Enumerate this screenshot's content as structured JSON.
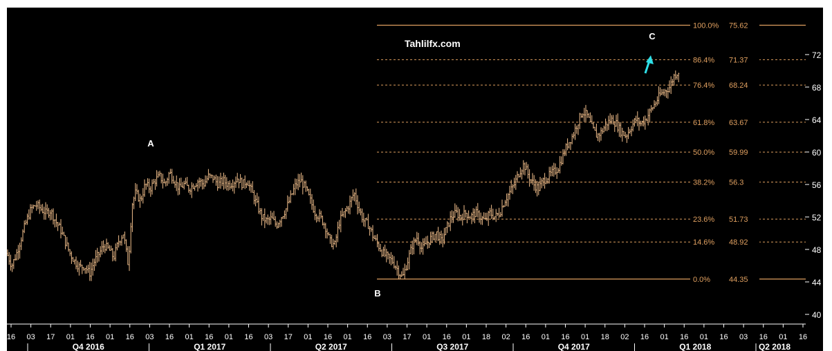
{
  "chart_data": {
    "type": "candlestick",
    "watermark": "Tahlilfx.com",
    "y_axis": {
      "ticks": [
        40,
        44,
        48,
        52,
        56,
        60,
        64,
        68,
        72
      ],
      "range": [
        39,
        77
      ]
    },
    "x_axis": {
      "day_ticks": [
        "16",
        "03",
        "17",
        "01",
        "16",
        "01",
        "16",
        "03",
        "16",
        "01",
        "16",
        "01",
        "16",
        "03",
        "17",
        "01",
        "16",
        "01",
        "16",
        "03",
        "17",
        "01",
        "16",
        "01",
        "18",
        "02",
        "16",
        "01",
        "16",
        "01",
        "18",
        "02",
        "16",
        "01",
        "16",
        "01",
        "16",
        "03",
        "16",
        "01",
        "16"
      ],
      "quarter_labels": [
        "Q4 2016",
        "Q1 2017",
        "Q2 2017",
        "Q3 2017",
        "Q4 2017",
        "Q1 2018",
        "Q2 2018"
      ]
    },
    "fibonacci_levels": [
      {
        "label": "100.0%",
        "value": "75.62",
        "level": 75.62
      },
      {
        "label": "86.4%",
        "value": "71.37",
        "level": 71.37
      },
      {
        "label": "76.4%",
        "value": "68.24",
        "level": 68.24
      },
      {
        "label": "61.8%",
        "value": "63.67",
        "level": 63.67
      },
      {
        "label": "50.0%",
        "value": "59.99",
        "level": 59.99
      },
      {
        "label": "38.2%",
        "value": "56.3",
        "level": 56.3
      },
      {
        "label": "23.6%",
        "value": "51.73",
        "level": 51.73
      },
      {
        "label": "14.6%",
        "value": "48.92",
        "level": 48.92
      },
      {
        "label": "0.0%",
        "value": "44.35",
        "level": 44.35
      }
    ],
    "wave_points": [
      {
        "label": "A",
        "price": 58.5
      },
      {
        "label": "B",
        "price": 44.35
      },
      {
        "label": "C",
        "price": 75.62
      }
    ],
    "price_path": [
      [
        0,
        47.5
      ],
      [
        0.04,
        46.0
      ],
      [
        0.08,
        47.5
      ],
      [
        0.12,
        49.5
      ],
      [
        0.16,
        51.5
      ],
      [
        0.2,
        53.0
      ],
      [
        0.24,
        53.5
      ],
      [
        0.28,
        53.0
      ],
      [
        0.32,
        52.5
      ],
      [
        0.36,
        52.8
      ],
      [
        0.4,
        51.5
      ],
      [
        0.44,
        50.5
      ],
      [
        0.48,
        49.0
      ],
      [
        0.52,
        47.5
      ],
      [
        0.56,
        46.5
      ],
      [
        0.6,
        45.8
      ],
      [
        0.64,
        46.0
      ],
      [
        0.68,
        45.0
      ],
      [
        0.72,
        46.5
      ],
      [
        0.76,
        47.5
      ],
      [
        0.8,
        48.5
      ],
      [
        0.84,
        48.0
      ],
      [
        0.88,
        47.0
      ],
      [
        0.92,
        49.0
      ],
      [
        0.96,
        50.0
      ],
      [
        1.0,
        46.0
      ],
      [
        1.03,
        53.5
      ],
      [
        1.06,
        55.0
      ],
      [
        1.1,
        54.0
      ],
      [
        1.14,
        56.0
      ],
      [
        1.18,
        55.5
      ],
      [
        1.22,
        56.5
      ],
      [
        1.26,
        57.0
      ],
      [
        1.3,
        56.0
      ],
      [
        1.34,
        57.5
      ],
      [
        1.38,
        56.5
      ],
      [
        1.42,
        55.5
      ],
      [
        1.46,
        56.0
      ],
      [
        1.5,
        55.5
      ],
      [
        1.54,
        56.0
      ],
      [
        1.58,
        56.5
      ],
      [
        1.62,
        56.0
      ],
      [
        1.66,
        57.0
      ],
      [
        1.7,
        56.8
      ],
      [
        1.74,
        56.0
      ],
      [
        1.78,
        56.5
      ],
      [
        1.82,
        56.0
      ],
      [
        1.86,
        56.2
      ],
      [
        1.9,
        56.8
      ],
      [
        1.94,
        56.0
      ],
      [
        1.98,
        56.5
      ],
      [
        2.02,
        55.0
      ],
      [
        2.06,
        53.5
      ],
      [
        2.1,
        52.0
      ],
      [
        2.14,
        51.5
      ],
      [
        2.18,
        51.8
      ],
      [
        2.22,
        51.0
      ],
      [
        2.26,
        52.0
      ],
      [
        2.3,
        53.0
      ],
      [
        2.34,
        54.5
      ],
      [
        2.38,
        56.0
      ],
      [
        2.42,
        56.5
      ],
      [
        2.46,
        55.5
      ],
      [
        2.5,
        54.0
      ],
      [
        2.54,
        52.5
      ],
      [
        2.58,
        52.0
      ],
      [
        2.62,
        51.0
      ],
      [
        2.66,
        49.0
      ],
      [
        2.7,
        48.5
      ],
      [
        2.74,
        51.5
      ],
      [
        2.78,
        52.5
      ],
      [
        2.82,
        53.5
      ],
      [
        2.86,
        55.0
      ],
      [
        2.9,
        53.0
      ],
      [
        2.94,
        51.5
      ],
      [
        2.98,
        51.0
      ],
      [
        3.02,
        49.5
      ],
      [
        3.06,
        48.5
      ],
      [
        3.1,
        47.5
      ],
      [
        3.14,
        47.0
      ],
      [
        3.18,
        46.5
      ],
      [
        3.22,
        45.5
      ],
      [
        3.26,
        44.5
      ],
      [
        3.3,
        46.5
      ],
      [
        3.34,
        48.5
      ],
      [
        3.38,
        49.5
      ],
      [
        3.42,
        48.0
      ],
      [
        3.46,
        48.8
      ],
      [
        3.5,
        49.5
      ],
      [
        3.54,
        50.0
      ],
      [
        3.58,
        49.0
      ],
      [
        3.62,
        50.5
      ],
      [
        3.66,
        52.0
      ],
      [
        3.7,
        52.5
      ],
      [
        3.74,
        52.0
      ],
      [
        3.78,
        52.5
      ],
      [
        3.82,
        52.0
      ],
      [
        3.86,
        52.5
      ],
      [
        3.9,
        52.0
      ],
      [
        3.94,
        51.5
      ],
      [
        3.98,
        52.5
      ],
      [
        4.02,
        52.0
      ],
      [
        4.06,
        52.5
      ],
      [
        4.1,
        54.0
      ],
      [
        4.14,
        55.0
      ],
      [
        4.18,
        56.0
      ],
      [
        4.22,
        57.5
      ],
      [
        4.26,
        58.5
      ],
      [
        4.3,
        57.0
      ],
      [
        4.34,
        56.0
      ],
      [
        4.38,
        55.5
      ],
      [
        4.42,
        56.5
      ],
      [
        4.46,
        57.0
      ],
      [
        4.5,
        57.5
      ],
      [
        4.54,
        58.0
      ],
      [
        4.58,
        59.5
      ],
      [
        4.62,
        61.0
      ],
      [
        4.66,
        62.0
      ],
      [
        4.7,
        63.5
      ],
      [
        4.74,
        65.0
      ],
      [
        4.78,
        64.5
      ],
      [
        4.82,
        63.0
      ],
      [
        4.86,
        62.0
      ],
      [
        4.9,
        62.5
      ],
      [
        4.94,
        63.5
      ],
      [
        4.98,
        64.0
      ],
      [
        5.02,
        63.5
      ],
      [
        5.06,
        62.5
      ],
      [
        5.1,
        62.0
      ],
      [
        5.14,
        63.0
      ],
      [
        5.18,
        64.0
      ],
      [
        5.22,
        63.5
      ],
      [
        5.26,
        64.0
      ],
      [
        5.3,
        65.0
      ],
      [
        5.34,
        66.0
      ],
      [
        5.38,
        67.0
      ],
      [
        5.42,
        67.5
      ],
      [
        5.46,
        68.0
      ],
      [
        5.5,
        69.5
      ],
      [
        5.54,
        70.0
      ]
    ],
    "arrow_color": "#2ee0e8",
    "fib_color": "#e0a060",
    "candle_color": "#f3c08c",
    "background": "#000000",
    "axis_color": "#ffffff"
  }
}
